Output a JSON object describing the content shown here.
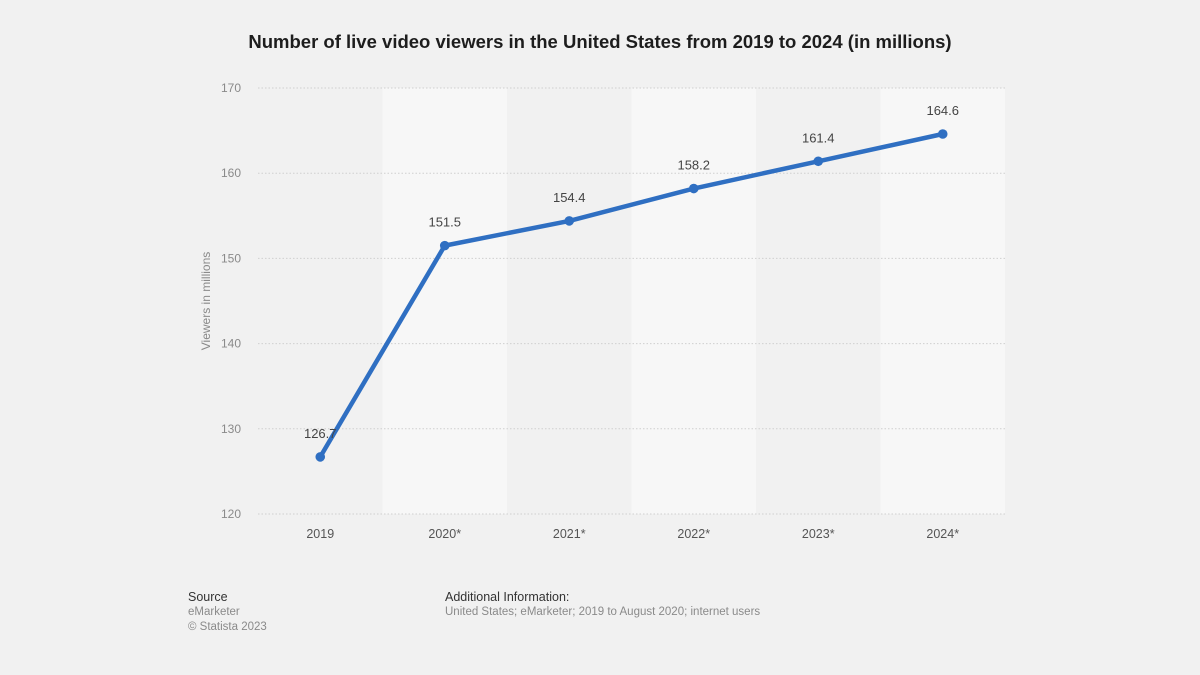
{
  "title": "Number of live video viewers in the United States from 2019 to 2024 (in millions)",
  "chart_data": {
    "type": "line",
    "categories": [
      "2019",
      "2020*",
      "2021*",
      "2022*",
      "2023*",
      "2024*"
    ],
    "values": [
      126.7,
      151.5,
      154.4,
      158.2,
      161.4,
      164.6
    ],
    "data_labels": [
      "126.7",
      "151.5",
      "154.4",
      "158.2",
      "161.4",
      "164.6"
    ],
    "xlabel": "",
    "ylabel": "Viewers in millions",
    "ylim": [
      120,
      170
    ],
    "yticks": [
      120,
      130,
      140,
      150,
      160,
      170
    ],
    "grid": true,
    "line_color": "#2f6fc2"
  },
  "footer": {
    "source_heading": "Source",
    "source_name": "eMarketer",
    "copyright": "© Statista 2023",
    "additional_heading": "Additional Information:",
    "additional_text": "United States; eMarketer; 2019 to August 2020; internet users"
  }
}
